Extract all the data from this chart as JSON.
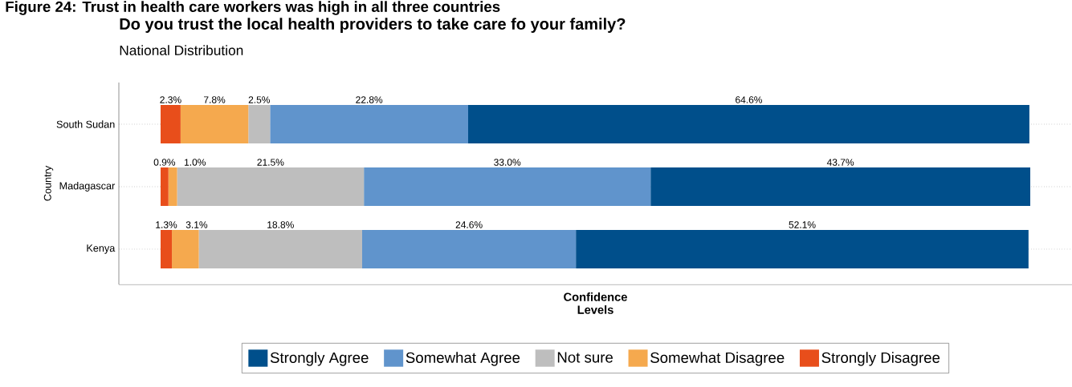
{
  "chart_data": {
    "type": "bar",
    "orientation": "horizontal",
    "stacked": true,
    "title": "Do you trust the local health providers to take care fo your family?",
    "subtitle": "National Distribution",
    "annotations": [
      "Figure 24: Trust in health care workers was high in all three countries"
    ],
    "xlabel": "Confidence Levels",
    "ylabel": "Country",
    "categories": [
      "South Sudan",
      "Madagascar",
      "Kenya"
    ],
    "series": [
      {
        "name": "Strongly Disagree",
        "color": "#e84e1b",
        "values": [
          2.3,
          0.9,
          1.3
        ],
        "value_labels": [
          "2.3%",
          "0.9%",
          "1.3%"
        ]
      },
      {
        "name": "Somewhat Disagree",
        "color": "#f5a94e",
        "values": [
          7.8,
          1.0,
          3.1
        ],
        "value_labels": [
          "7.8%",
          "1.0%",
          "3.1%"
        ]
      },
      {
        "name": "Not sure",
        "color": "#bebebe",
        "values": [
          2.5,
          21.5,
          18.8
        ],
        "value_labels": [
          "2.5%",
          "21.5%",
          "18.8%"
        ]
      },
      {
        "name": "Somewhat Agree",
        "color": "#6094cc",
        "values": [
          22.8,
          33.0,
          24.6
        ],
        "value_labels": [
          "22.8%",
          "33.0%",
          "24.6%"
        ]
      },
      {
        "name": "Strongly Agree",
        "color": "#004f8b",
        "values": [
          64.6,
          43.7,
          52.1
        ],
        "value_labels": [
          "64.6%",
          "43.7%",
          "52.1%"
        ]
      }
    ],
    "grid": "y",
    "legend": "bottom",
    "tick_labels": "y"
  }
}
